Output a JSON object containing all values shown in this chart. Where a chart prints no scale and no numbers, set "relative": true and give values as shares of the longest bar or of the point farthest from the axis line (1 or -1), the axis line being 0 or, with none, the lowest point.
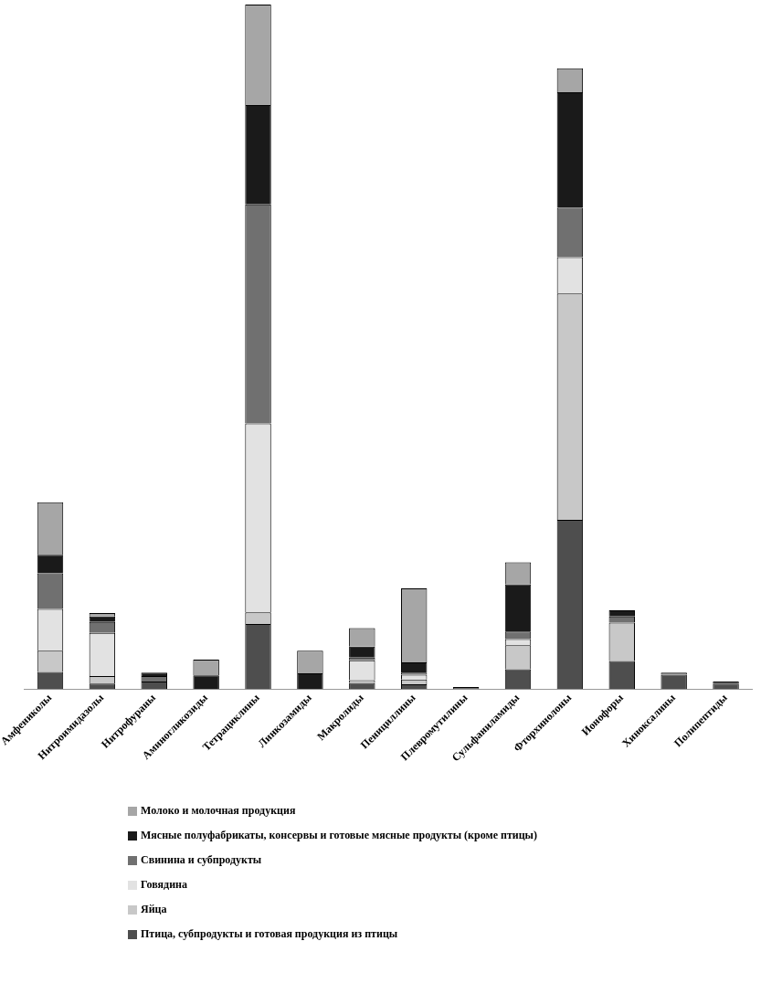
{
  "chart_data": {
    "type": "bar",
    "stacked": true,
    "relative": true,
    "legend": "bottom",
    "grid": false,
    "categories": [
      "Амфениколы",
      "Нитроимидазолы",
      "Нитрофураны",
      "Аминогликозиды",
      "Тетрациклины",
      "Линкозамиды",
      "Макролиды",
      "Пенициллины",
      "Плевромутилины",
      "Сульфаниламиды",
      "Фторхинолоны",
      "Ионофоры",
      "Хиноксалины",
      "Полипептиды"
    ],
    "series": [
      {
        "name": "Птица, субпродукты и готовая продукция из птицы",
        "color": "#4e4e4e",
        "values": [
          0.025,
          0.008,
          0.011,
          0,
          0.095,
          0,
          0.009,
          0.007,
          0,
          0.029,
          0.247,
          0.041,
          0.021,
          0.008
        ]
      },
      {
        "name": "Яйца",
        "color": "#c8c8c8",
        "values": [
          0.031,
          0.011,
          0,
          0,
          0.017,
          0,
          0.004,
          0.007,
          0,
          0.035,
          0.331,
          0.056,
          0,
          0
        ]
      },
      {
        "name": "Говядина",
        "color": "#e2e2e2",
        "values": [
          0.061,
          0.063,
          0,
          0,
          0.276,
          0,
          0.029,
          0.007,
          0,
          0.009,
          0.053,
          0,
          0,
          0
        ]
      },
      {
        "name": "Свинина и субпродукты",
        "color": "#707070",
        "values": [
          0.052,
          0.016,
          0.008,
          0,
          0.32,
          0,
          0.004,
          0.003,
          0.003,
          0.011,
          0.072,
          0.009,
          0.003,
          0.003
        ]
      },
      {
        "name": "Мясные полуфабрикаты, консервы и готовые мясные продукты (кроме птицы)",
        "color": "#1a1a1a",
        "values": [
          0.027,
          0.008,
          0.005,
          0.02,
          0.145,
          0.023,
          0.016,
          0.015,
          0,
          0.069,
          0.169,
          0.009,
          0,
          0
        ]
      },
      {
        "name": "Молоко и молочная продукция",
        "color": "#a6a6a6",
        "values": [
          0.077,
          0.005,
          0,
          0.023,
          0.147,
          0.033,
          0.027,
          0.108,
          0,
          0.032,
          0.035,
          0,
          0,
          0
        ]
      }
    ]
  }
}
